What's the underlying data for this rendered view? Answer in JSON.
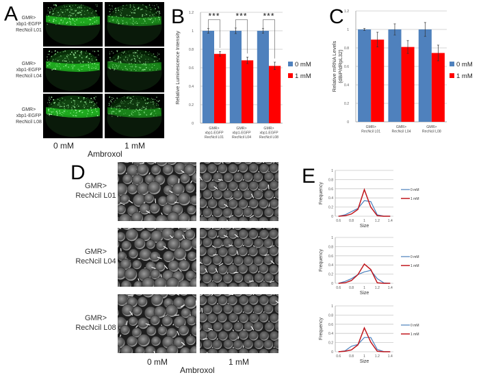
{
  "panels": {
    "A": {
      "letter": "A",
      "rows": [
        {
          "l1": "GMR>",
          "l2": "xbp1-EGFP",
          "l3": "RecNcil L01"
        },
        {
          "l1": "GMR>",
          "l2": "xbp1-EGFP",
          "l3": "RecNcil L04"
        },
        {
          "l1": "GMR>",
          "l2": "xbp1-EGFP",
          "l3": "RecNcil L08"
        }
      ],
      "columns": [
        "0 mM",
        "1 mM"
      ],
      "treatment": "Ambroxol"
    },
    "B": {
      "letter": "B"
    },
    "C": {
      "letter": "C"
    },
    "D": {
      "letter": "D",
      "rows": [
        {
          "l1": "GMR>",
          "l2": "RecNcil L01"
        },
        {
          "l1": "GMR>",
          "l2": "RecNcil L04"
        },
        {
          "l1": "GMR>",
          "l2": "RecNcil L08"
        }
      ],
      "columns": [
        "0 mM",
        "1 mM"
      ],
      "treatment": "Ambroxol"
    },
    "E": {
      "letter": "E"
    }
  },
  "colors": {
    "blue": "#4f81bd",
    "red": "#ff0000",
    "line_blue": "#4a7ebb",
    "line_red": "#c0161c",
    "gfp": "#2bff2b"
  },
  "chart_data": [
    {
      "id": "B",
      "type": "bar",
      "title": "",
      "xlabel": "",
      "ylabel": "Relative Luminescence Intensity",
      "categories": [
        "GMR> xbp1-EGFP RecNcil L01",
        "GMR> xbp1-EGFP RecNcil L04",
        "GMR> xbp1-EGFP RecNcil L08"
      ],
      "series": [
        {
          "name": "0 mM",
          "values": [
            1.0,
            1.0,
            1.0
          ],
          "errors": [
            0.025,
            0.03,
            0.025
          ],
          "color": "#4f81bd"
        },
        {
          "name": "1 mM",
          "values": [
            0.75,
            0.68,
            0.62
          ],
          "errors": [
            0.025,
            0.035,
            0.04
          ],
          "color": "#ff0000"
        }
      ],
      "annotations": [
        "***",
        "***",
        "***"
      ],
      "yticks": [
        0,
        0.2,
        0.4,
        0.6,
        0.8,
        1,
        1.2
      ],
      "ylim": [
        0,
        1.2
      ],
      "grid": true,
      "legend_position": "right"
    },
    {
      "id": "C",
      "type": "bar",
      "title": "",
      "xlabel": "",
      "ylabel": "Relative mRNA Levels (dBiP/dRpL32)",
      "categories": [
        "GMR> RecNcil L01",
        "GMR> RecNcil L04",
        "GMR> RecNcil L08"
      ],
      "series": [
        {
          "name": "0 mM",
          "values": [
            1.0,
            1.0,
            1.0
          ],
          "errors": [
            0.01,
            0.06,
            0.075
          ],
          "color": "#4f81bd"
        },
        {
          "name": "1 mM",
          "values": [
            0.89,
            0.81,
            0.745
          ],
          "errors": [
            0.08,
            0.07,
            0.085
          ],
          "color": "#ff0000"
        }
      ],
      "yticks": [
        0,
        0.2,
        0.4,
        0.6,
        0.8,
        1,
        1.2
      ],
      "ylim": [
        0,
        1.2
      ],
      "grid": true,
      "legend_position": "right"
    },
    {
      "id": "E1",
      "type": "line",
      "xlabel": "Size",
      "ylabel": "Frequency",
      "x": [
        0.6,
        0.7,
        0.8,
        0.9,
        1.0,
        1.1,
        1.2,
        1.3,
        1.4
      ],
      "series": [
        {
          "name": "0 mM",
          "values": [
            0,
            0.03,
            0.1,
            0.17,
            0.34,
            0.32,
            0.03,
            0.005,
            0
          ],
          "color": "#4a7ebb"
        },
        {
          "name": "1 mM",
          "values": [
            0,
            0.01,
            0.05,
            0.15,
            0.58,
            0.2,
            0.01,
            0,
            0
          ],
          "color": "#c0161c"
        }
      ],
      "xticks": [
        0.6,
        0.8,
        1,
        1.2,
        1.4
      ],
      "yticks": [
        0,
        0.2,
        0.4,
        0.6,
        0.8,
        1
      ],
      "ylim": [
        0,
        1
      ],
      "grid": true,
      "legend_position": "right"
    },
    {
      "id": "E2",
      "type": "line",
      "xlabel": "Size",
      "ylabel": "Frequency",
      "x": [
        0.6,
        0.7,
        0.8,
        0.9,
        1.0,
        1.1,
        1.2,
        1.3,
        1.4
      ],
      "series": [
        {
          "name": "0 mM",
          "values": [
            0,
            0.04,
            0.1,
            0.19,
            0.25,
            0.28,
            0.1,
            0.01,
            0
          ],
          "color": "#4a7ebb"
        },
        {
          "name": "1 mM",
          "values": [
            0,
            0.01,
            0.06,
            0.19,
            0.42,
            0.3,
            0.01,
            0,
            0
          ],
          "color": "#c0161c"
        }
      ],
      "xticks": [
        0.6,
        0.8,
        1,
        1.2,
        1.4
      ],
      "yticks": [
        0,
        0.2,
        0.4,
        0.6,
        0.8,
        1
      ],
      "ylim": [
        0,
        1
      ],
      "grid": true,
      "legend_position": "right"
    },
    {
      "id": "E3",
      "type": "line",
      "xlabel": "Size",
      "ylabel": "Frequency",
      "x": [
        0.6,
        0.7,
        0.8,
        0.9,
        1.0,
        1.1,
        1.2,
        1.3,
        1.4
      ],
      "series": [
        {
          "name": "0 mM",
          "values": [
            0,
            0.02,
            0.12,
            0.16,
            0.31,
            0.31,
            0.05,
            0.005,
            0
          ],
          "color": "#4a7ebb"
        },
        {
          "name": "1 mM",
          "values": [
            0,
            0.01,
            0.04,
            0.15,
            0.52,
            0.21,
            0.01,
            0,
            0
          ],
          "color": "#c0161c"
        }
      ],
      "xticks": [
        0.6,
        0.8,
        1,
        1.2,
        1.4
      ],
      "yticks": [
        0,
        0.2,
        0.4,
        0.6,
        0.8,
        1
      ],
      "ylim": [
        0,
        1
      ],
      "grid": true,
      "legend_position": "right"
    }
  ]
}
